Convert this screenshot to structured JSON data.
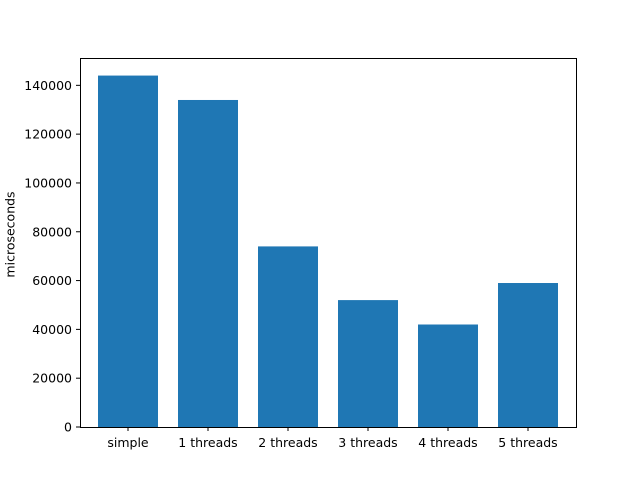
{
  "chart_data": {
    "type": "bar",
    "title": "",
    "xlabel": "",
    "ylabel": "microseconds",
    "categories": [
      "simple",
      "1 threads",
      "2 threads",
      "3 threads",
      "4 threads",
      "5 threads"
    ],
    "values": [
      144000,
      134000,
      74000,
      52000,
      42000,
      59000
    ],
    "ylim": [
      0,
      151200
    ],
    "yticks": [
      0,
      20000,
      40000,
      60000,
      80000,
      100000,
      120000,
      140000
    ],
    "grid": false,
    "legend": "none",
    "colors": {
      "bar": "#1f77b4",
      "axis": "#000000"
    }
  }
}
